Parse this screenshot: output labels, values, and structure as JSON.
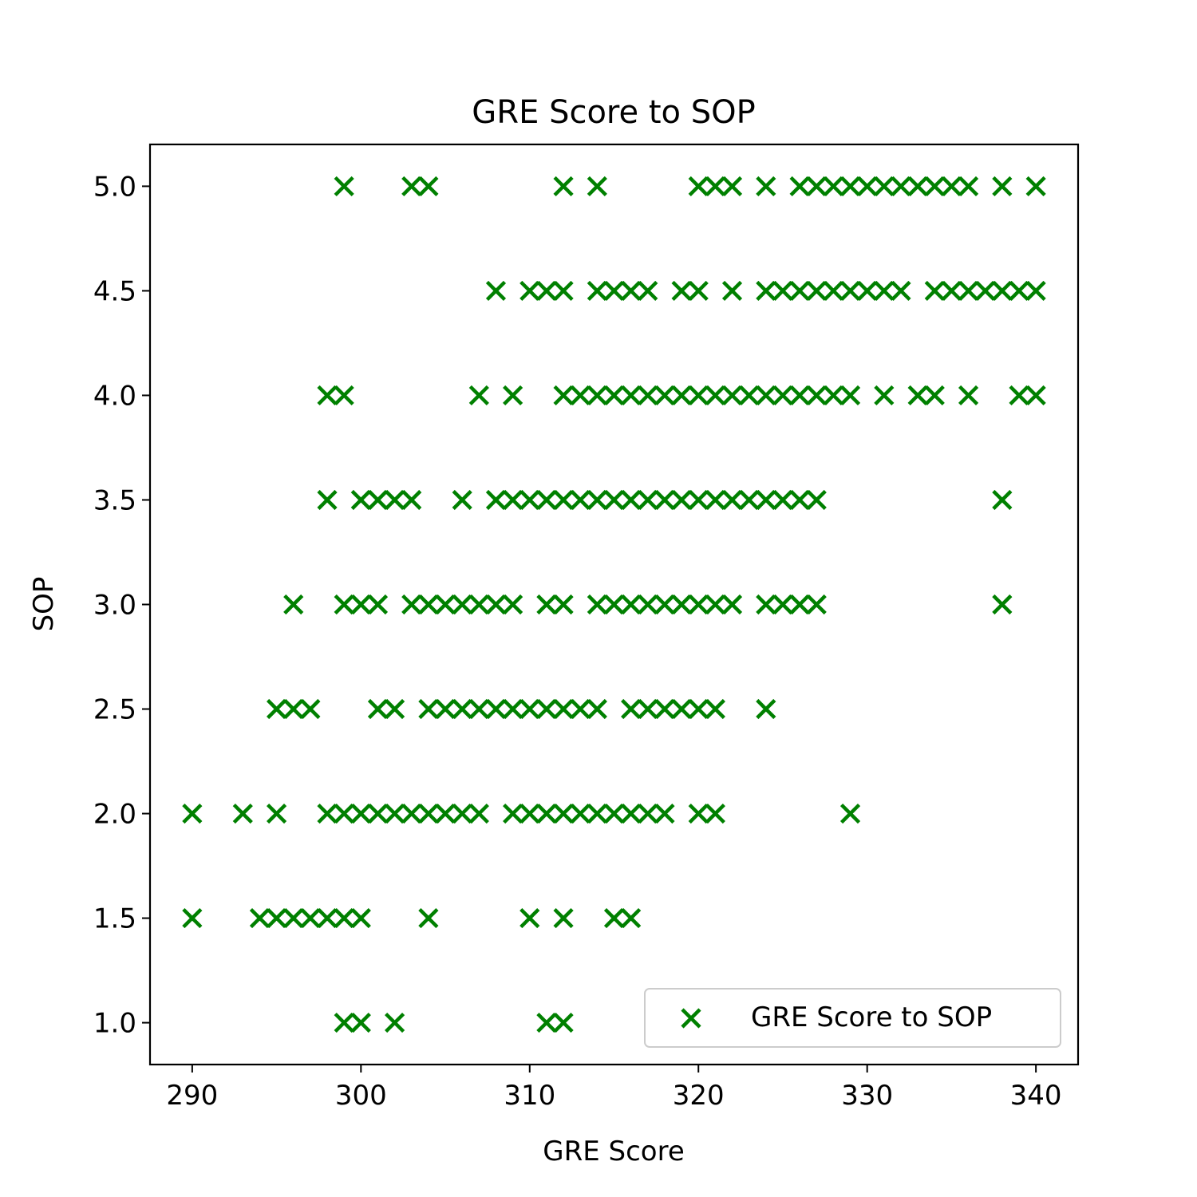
{
  "chart_data": {
    "type": "scatter",
    "title": "GRE Score to SOP",
    "xlabel": "GRE Score",
    "ylabel": "SOP",
    "xlim": [
      287.5,
      342.5
    ],
    "ylim": [
      0.8,
      5.2
    ],
    "xticks": [
      290,
      300,
      310,
      320,
      330,
      340
    ],
    "yticks": [
      1.0,
      1.5,
      2.0,
      2.5,
      3.0,
      3.5,
      4.0,
      4.5,
      5.0
    ],
    "xtick_labels": [
      "290",
      "300",
      "310",
      "320",
      "330",
      "340"
    ],
    "ytick_labels": [
      "1.0",
      "1.5",
      "2.0",
      "2.5",
      "3.0",
      "3.5",
      "4.0",
      "4.5",
      "5.0"
    ],
    "grid": false,
    "legend_position": "lower right",
    "marker": "x",
    "color": "#008000",
    "series": [
      {
        "name": "GRE Score to SOP",
        "points": [
          {
            "y": 5.0,
            "x": [
              299,
              303,
              304,
              312,
              314,
              320,
              321,
              322,
              324,
              326,
              327,
              328,
              329,
              330,
              331,
              332,
              333,
              334,
              335,
              336,
              338,
              340
            ]
          },
          {
            "y": 4.5,
            "x": [
              308,
              310,
              311,
              312,
              314,
              315,
              316,
              317,
              319,
              320,
              322,
              324,
              325,
              326,
              327,
              328,
              329,
              330,
              331,
              332,
              334,
              335,
              336,
              337,
              338,
              339,
              340
            ]
          },
          {
            "y": 4.0,
            "x": [
              298,
              299,
              307,
              309,
              312,
              313,
              314,
              315,
              316,
              317,
              318,
              319,
              320,
              321,
              322,
              323,
              324,
              325,
              326,
              327,
              328,
              329,
              331,
              333,
              334,
              336,
              339,
              340
            ]
          },
          {
            "y": 3.5,
            "x": [
              298,
              300,
              301,
              302,
              303,
              306,
              308,
              309,
              310,
              311,
              312,
              313,
              314,
              315,
              316,
              317,
              318,
              319,
              320,
              321,
              322,
              323,
              324,
              325,
              326,
              327,
              338
            ]
          },
          {
            "y": 3.0,
            "x": [
              296,
              299,
              300,
              301,
              303,
              304,
              305,
              306,
              307,
              308,
              309,
              311,
              312,
              314,
              315,
              316,
              317,
              318,
              319,
              320,
              321,
              322,
              324,
              325,
              326,
              327,
              338
            ]
          },
          {
            "y": 2.5,
            "x": [
              295,
              296,
              297,
              301,
              302,
              304,
              305,
              306,
              307,
              308,
              309,
              310,
              311,
              312,
              313,
              314,
              316,
              317,
              318,
              319,
              320,
              321,
              324
            ]
          },
          {
            "y": 2.0,
            "x": [
              290,
              293,
              295,
              298,
              299,
              300,
              301,
              302,
              303,
              304,
              305,
              306,
              307,
              309,
              310,
              311,
              312,
              313,
              314,
              315,
              316,
              317,
              318,
              320,
              321,
              329
            ]
          },
          {
            "y": 1.5,
            "x": [
              290,
              294,
              295,
              296,
              297,
              298,
              299,
              300,
              304,
              310,
              312,
              315,
              316
            ]
          },
          {
            "y": 1.0,
            "x": [
              299,
              300,
              302,
              311,
              312
            ]
          }
        ]
      }
    ]
  }
}
